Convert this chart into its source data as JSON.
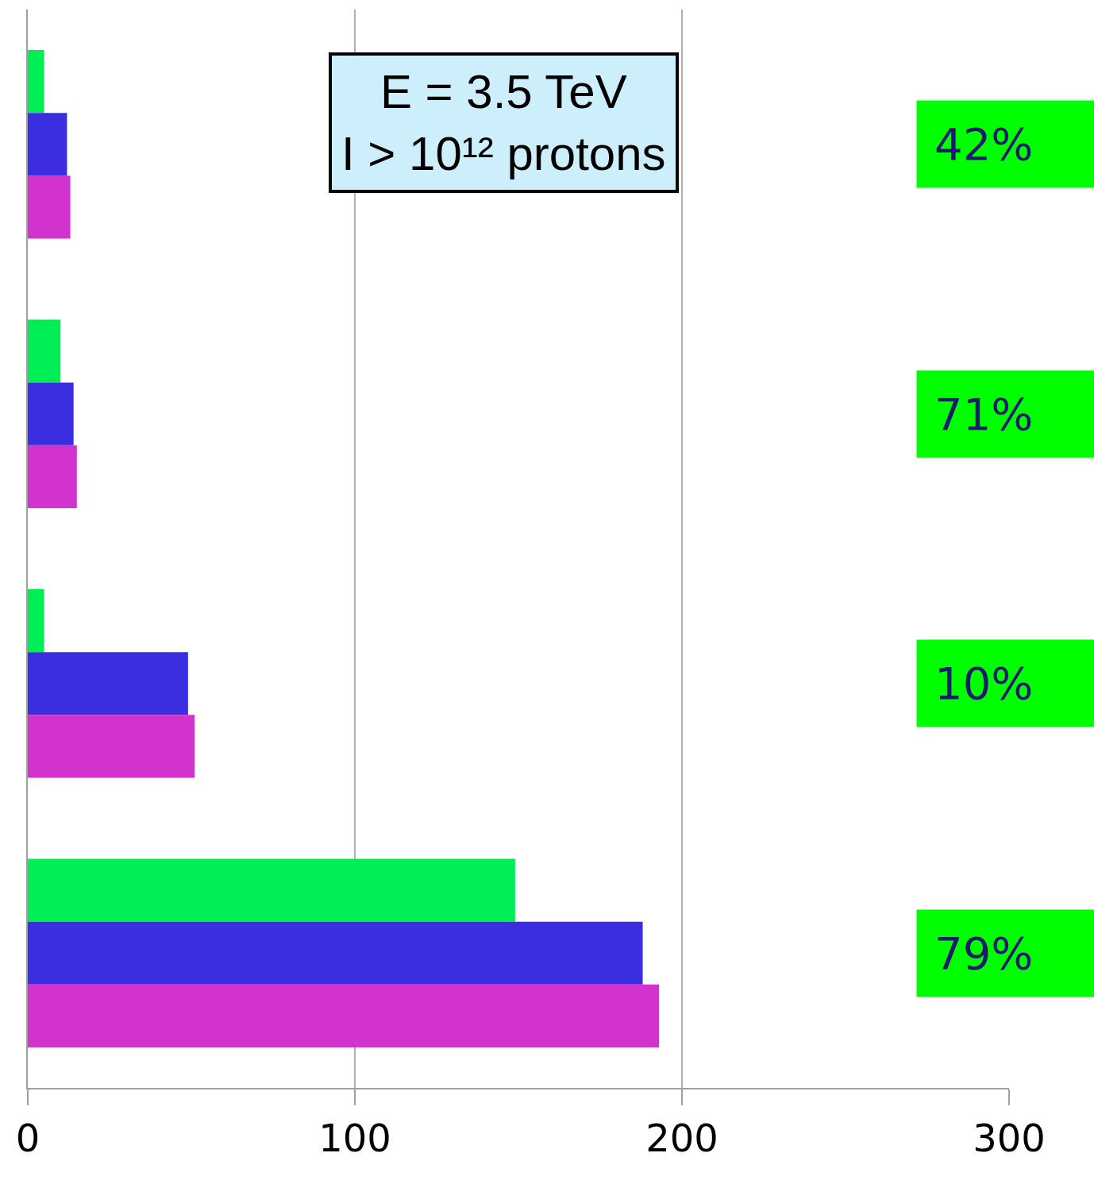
{
  "chart_data": {
    "type": "bar",
    "orientation": "horizontal",
    "categories": [
      null,
      null,
      null,
      null
    ],
    "series": [
      {
        "color": "#00ee55",
        "values": [
          5,
          10,
          5,
          149
        ]
      },
      {
        "color": "#3a2ee0",
        "values": [
          12,
          14,
          49,
          188
        ]
      },
      {
        "color": "#d233cf",
        "values": [
          13,
          15,
          51,
          193
        ]
      }
    ],
    "xlim": [
      0,
      300
    ],
    "xticks": [
      0,
      100,
      200,
      300
    ],
    "grid": "x",
    "annotations": [
      "E = 3.5 TeV\nI > 10¹² protons",
      "42%",
      "71%",
      "10%",
      "79%"
    ]
  }
}
